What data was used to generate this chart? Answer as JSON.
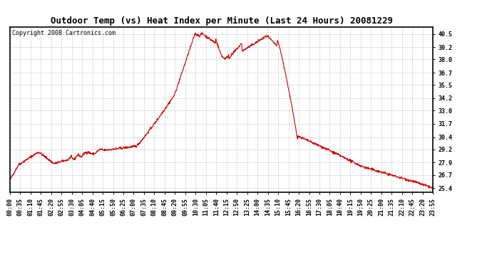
{
  "title": "Outdoor Temp (vs) Heat Index per Minute (Last 24 Hours) 20081229",
  "copyright": "Copyright 2008 Cartronics.com",
  "line_color": "#cc0000",
  "background_color": "#ffffff",
  "grid_color": "#bbbbbb",
  "yticks": [
    25.4,
    26.7,
    27.9,
    29.2,
    30.4,
    31.7,
    33.0,
    34.2,
    35.5,
    36.7,
    38.0,
    39.2,
    40.5
  ],
  "ylim": [
    25.0,
    41.2
  ],
  "xtick_labels": [
    "00:00",
    "00:35",
    "01:10",
    "01:45",
    "02:20",
    "02:55",
    "03:30",
    "04:05",
    "04:40",
    "05:15",
    "05:50",
    "06:25",
    "07:00",
    "07:35",
    "08:10",
    "08:45",
    "09:20",
    "09:55",
    "10:30",
    "11:05",
    "11:40",
    "12:15",
    "12:50",
    "13:25",
    "14:00",
    "14:35",
    "15:10",
    "15:45",
    "16:20",
    "16:55",
    "17:30",
    "18:05",
    "18:40",
    "19:15",
    "19:50",
    "20:25",
    "21:00",
    "21:35",
    "22:10",
    "22:45",
    "23:20",
    "23:55"
  ],
  "title_fontsize": 9,
  "tick_fontsize": 6,
  "copyright_fontsize": 6
}
